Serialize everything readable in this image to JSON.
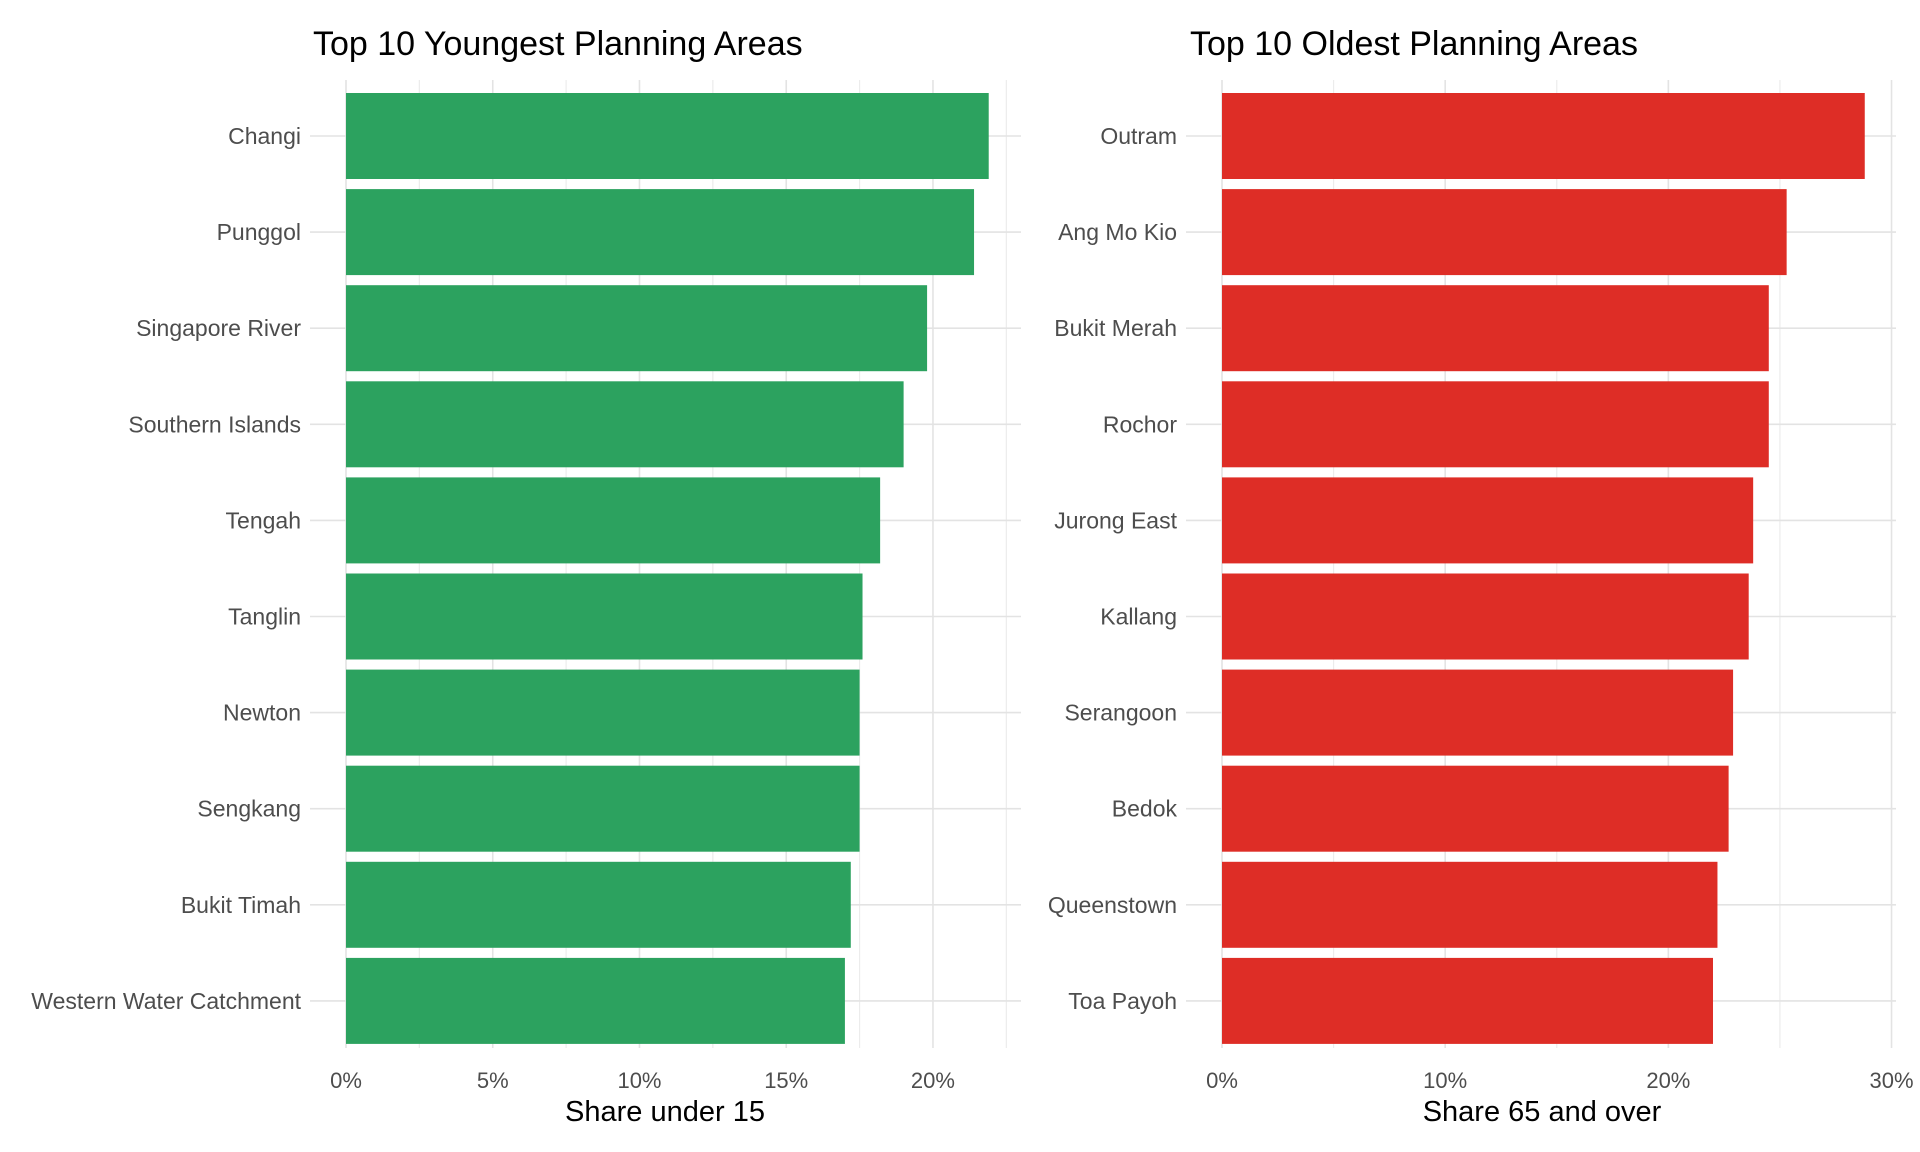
{
  "chart_data": [
    {
      "type": "bar",
      "orientation": "horizontal",
      "title": "Top 10 Youngest Planning Areas",
      "xlabel": "Share under 15",
      "ylabel": "",
      "categories": [
        "Changi",
        "Punggol",
        "Singapore River",
        "Southern Islands",
        "Tengah",
        "Tanglin",
        "Newton",
        "Sengkang",
        "Bukit Timah",
        "Western Water Catchment"
      ],
      "values": [
        21.9,
        21.4,
        19.8,
        19.0,
        18.2,
        17.6,
        17.5,
        17.5,
        17.2,
        17.0
      ],
      "xlim": [
        0,
        23
      ],
      "xticks": [
        0,
        5,
        10,
        15,
        20
      ],
      "xtick_labels": [
        "0%",
        "5%",
        "10%",
        "15%",
        "20%"
      ],
      "bar_color": "#2CA25F",
      "grid": true
    },
    {
      "type": "bar",
      "orientation": "horizontal",
      "title": "Top 10 Oldest Planning Areas",
      "xlabel": "Share 65 and over",
      "ylabel": "",
      "categories": [
        "Outram",
        "Ang Mo Kio",
        "Bukit Merah",
        "Rochor",
        "Jurong East",
        "Kallang",
        "Serangoon",
        "Bedok",
        "Queenstown",
        "Toa Payoh"
      ],
      "values": [
        28.8,
        25.3,
        24.5,
        24.5,
        23.8,
        23.6,
        22.9,
        22.7,
        22.2,
        22.0
      ],
      "xlim": [
        0,
        30.2
      ],
      "xticks": [
        0,
        10,
        20,
        30
      ],
      "xtick_labels": [
        "0%",
        "10%",
        "20%",
        "30%"
      ],
      "bar_color": "#DE2D26",
      "grid": true
    }
  ]
}
